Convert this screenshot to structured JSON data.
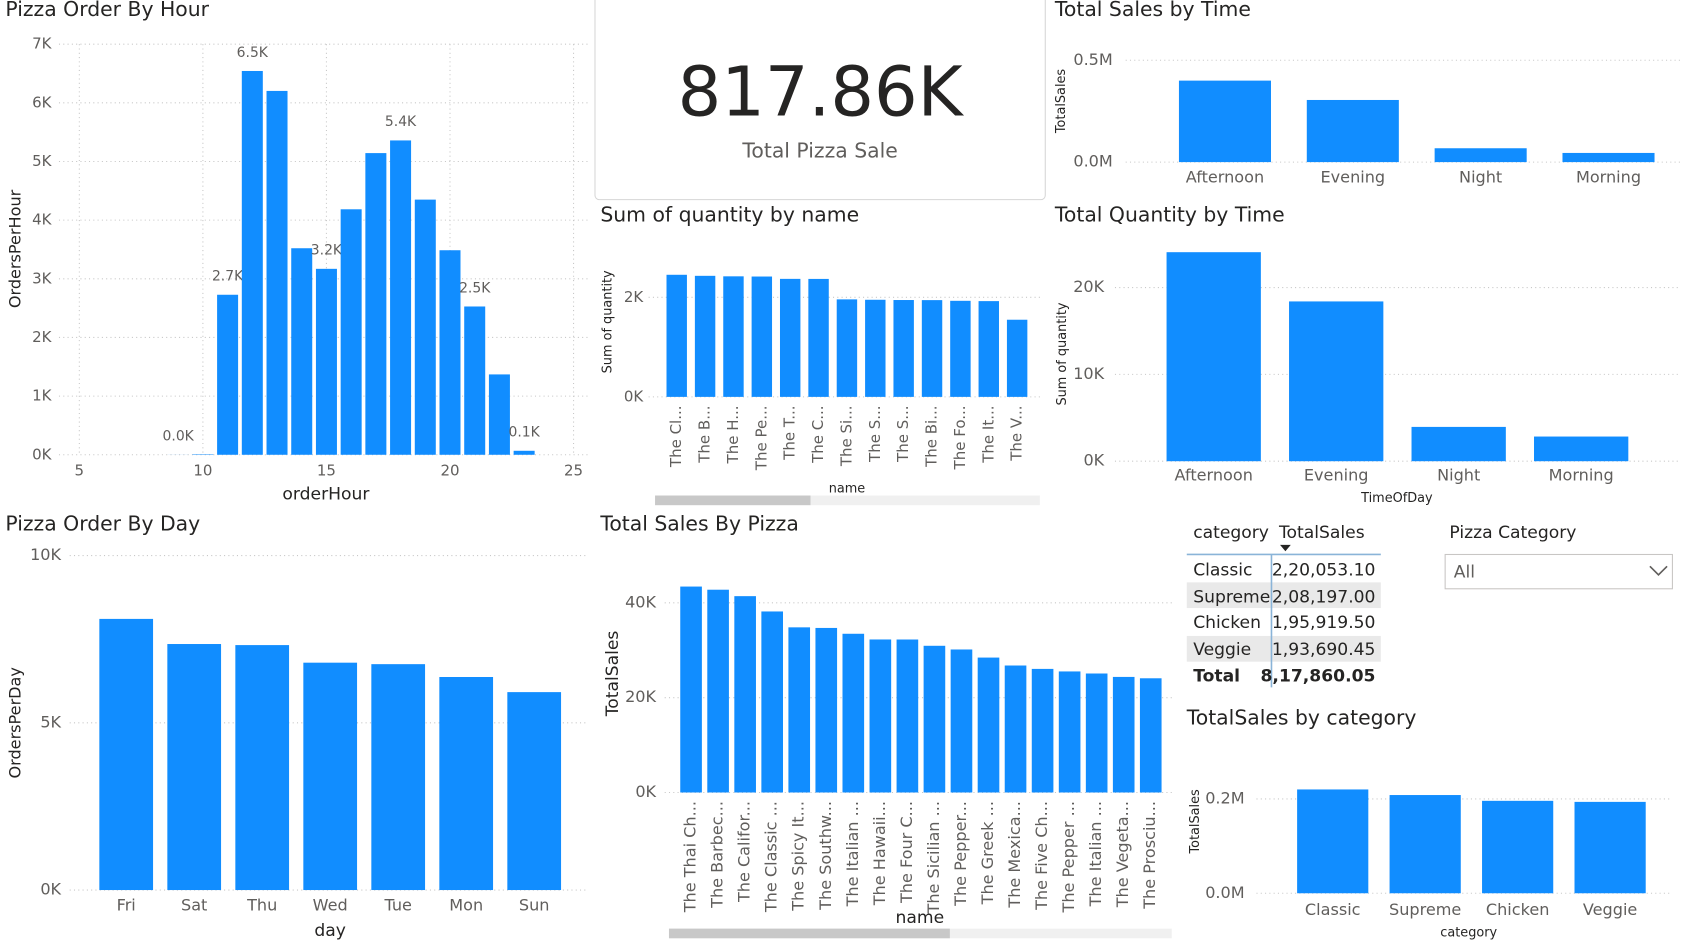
{
  "chart_data": [
    {
      "type": "bar",
      "title": "Pizza Order By Hour",
      "x_label": "orderHour",
      "y_label": "OrdersPerHour",
      "x": [
        9,
        10,
        11,
        12,
        13,
        14,
        15,
        16,
        17,
        18,
        19,
        20,
        21,
        22,
        23
      ],
      "values": [
        1,
        8,
        2728,
        6543,
        6203,
        3521,
        3170,
        4185,
        5143,
        5359,
        4350,
        3487,
        2528,
        1370,
        68
      ],
      "value_labels": [
        "0.0K",
        null,
        "2.7K",
        "6.5K",
        null,
        null,
        "3.2K",
        null,
        null,
        "5.4K",
        null,
        null,
        "2.5K",
        null,
        "0.1K"
      ],
      "xlim": [
        5,
        25
      ],
      "xticks": [
        5,
        10,
        15,
        20,
        25
      ],
      "ylim": [
        0,
        7000
      ],
      "yticks": [
        {
          "value": 0,
          "label": "0K"
        },
        {
          "value": 1000,
          "label": "1K"
        },
        {
          "value": 2000,
          "label": "2K"
        },
        {
          "value": 3000,
          "label": "3K"
        },
        {
          "value": 4000,
          "label": "4K"
        },
        {
          "value": 5000,
          "label": "5K"
        },
        {
          "value": 6000,
          "label": "6K"
        },
        {
          "value": 7000,
          "label": "7K"
        }
      ],
      "color": "#118DFF",
      "grid": true
    },
    {
      "type": "bar",
      "title": "Total Sales by Time",
      "y_label": "TotalSales",
      "categories": [
        "Afternoon",
        "Evening",
        "Night",
        "Morning"
      ],
      "values": [
        400000,
        305000,
        68000,
        45000
      ],
      "ylim": [
        0,
        500000
      ],
      "yticks": [
        {
          "value": 0,
          "label": "0.0M"
        },
        {
          "value": 500000,
          "label": "0.5M"
        }
      ],
      "color": "#118DFF",
      "grid": true
    },
    {
      "type": "bar",
      "title": "Sum of quantity by name",
      "x_label": "name",
      "y_label": "Sum of quantity",
      "categories": [
        "The Cl...",
        "The B...",
        "The H...",
        "The Pe...",
        "The T...",
        "The C...",
        "The Si...",
        "The S...",
        "The S...",
        "The Bi...",
        "The Fo...",
        "The It...",
        "The V..."
      ],
      "values": [
        2453,
        2432,
        2422,
        2418,
        2371,
        2370,
        1959,
        1951,
        1946,
        1944,
        1930,
        1924,
        1550
      ],
      "ylim": [
        0,
        2800
      ],
      "yticks": [
        {
          "value": 0,
          "label": "0K"
        },
        {
          "value": 2000,
          "label": "2K"
        }
      ],
      "color": "#118DFF",
      "grid": true
    },
    {
      "type": "bar",
      "title": "Total Quantity by Time",
      "x_label": "TimeOfDay",
      "y_label": "Sum of quantity",
      "categories": [
        "Afternoon",
        "Evening",
        "Night",
        "Morning"
      ],
      "values": [
        24070,
        18400,
        3950,
        2840
      ],
      "ylim": [
        0,
        25000
      ],
      "yticks": [
        {
          "value": 0,
          "label": "0K"
        },
        {
          "value": 10000,
          "label": "10K"
        },
        {
          "value": 20000,
          "label": "20K"
        }
      ],
      "color": "#118DFF",
      "grid": true
    },
    {
      "type": "bar",
      "title": "Pizza Order By Day",
      "x_label": "day",
      "y_label": "OrdersPerDay",
      "categories": [
        "Fri",
        "Sat",
        "Thu",
        "Wed",
        "Tue",
        "Mon",
        "Sun"
      ],
      "values": [
        8106,
        7355,
        7323,
        6797,
        6753,
        6369,
        5917
      ],
      "ylim": [
        0,
        10000
      ],
      "yticks": [
        {
          "value": 0,
          "label": "0K"
        },
        {
          "value": 5000,
          "label": "5K"
        },
        {
          "value": 10000,
          "label": "10K"
        }
      ],
      "color": "#118DFF",
      "grid": true
    },
    {
      "type": "bar",
      "title": "Total Sales By Pizza",
      "x_label": "name",
      "y_label": "TotalSales",
      "categories": [
        "The Thai Ch...",
        "The Barbec...",
        "The Califor...",
        "The Classic ...",
        "The Spicy It...",
        "The Southw...",
        "The Italian ...",
        "The Hawaii...",
        "The Four C...",
        "The Sicilian ...",
        "The Pepper...",
        "The Greek ...",
        "The Mexica...",
        "The Five Ch...",
        "The Pepper ...",
        "The Italian ...",
        "The Vegeta...",
        "The Prosciu..."
      ],
      "values": [
        43434,
        42768,
        41410,
        38180,
        34831,
        34705,
        33476,
        32273,
        32265,
        30940,
        30161,
        28454,
        26780,
        26066,
        25529,
        25094,
        24374,
        24087
      ],
      "ylim": [
        0,
        45000
      ],
      "yticks": [
        {
          "value": 0,
          "label": "0K"
        },
        {
          "value": 20000,
          "label": "20K"
        },
        {
          "value": 40000,
          "label": "40K"
        }
      ],
      "color": "#118DFF",
      "grid": true
    },
    {
      "type": "bar",
      "title": "TotalSales by category",
      "x_label": "category",
      "y_label": "TotalSales",
      "categories": [
        "Classic",
        "Supreme",
        "Chicken",
        "Veggie"
      ],
      "values": [
        220053.1,
        208197.0,
        195919.5,
        193690.45
      ],
      "ylim": [
        0,
        250000
      ],
      "yticks": [
        {
          "value": 0,
          "label": "0.0M"
        },
        {
          "value": 200000,
          "label": "0.2M"
        }
      ],
      "color": "#118DFF",
      "grid": true
    }
  ],
  "card": {
    "value": "817.86K",
    "label": "Total Pizza Sale"
  },
  "table": {
    "columns": [
      "category",
      "TotalSales"
    ],
    "rows": [
      [
        "Classic",
        "2,20,053.10"
      ],
      [
        "Supreme",
        "2,08,197.00"
      ],
      [
        "Chicken",
        "1,95,919.50"
      ],
      [
        "Veggie",
        "1,93,690.45"
      ]
    ],
    "total": [
      "Total",
      "8,17,860.05"
    ]
  },
  "slicer": {
    "title": "Pizza Category",
    "selected": "All"
  }
}
